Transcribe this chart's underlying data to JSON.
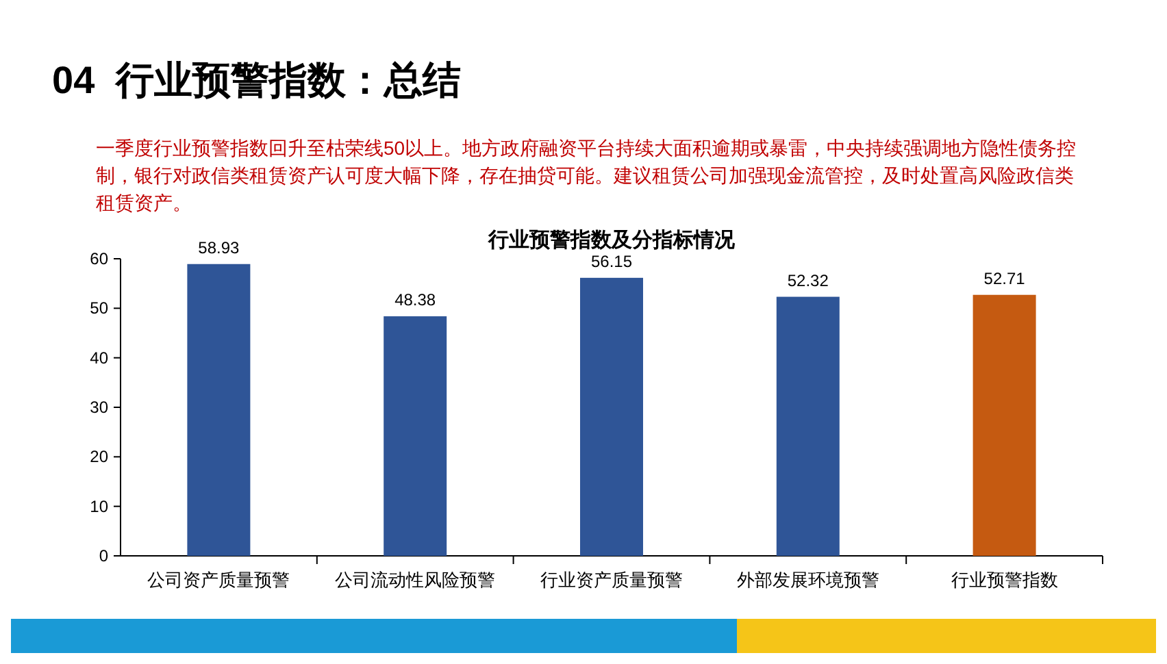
{
  "chart_data": {
    "type": "bar",
    "title": "行业预警指数及分指标情况",
    "annotations": [
      "04  行业预警指数：总结",
      "一季度行业预警指数回升至枯荣线50以上。地方政府融资平台持续大面积逾期或暴雷，中央持续强调地方隐性债务控制，银行对政信类租赁资产认可度大幅下降，存在抽贷可能。建议租赁公司加强现金流管控，及时处置高风险政信类租赁资产。"
    ],
    "categories": [
      "公司资产质量预警",
      "公司流动性风险预警",
      "行业资产质量预警",
      "外部发展环境预警",
      "行业预警指数"
    ],
    "values": [
      58.93,
      48.38,
      56.15,
      52.32,
      52.71
    ],
    "colors": [
      "#2f5597",
      "#2f5597",
      "#2f5597",
      "#2f5597",
      "#c55a11"
    ],
    "ylim": [
      0,
      60
    ],
    "yticks": [
      0,
      10,
      20,
      30,
      40,
      50,
      60
    ],
    "grid": false,
    "data_labels": true
  }
}
